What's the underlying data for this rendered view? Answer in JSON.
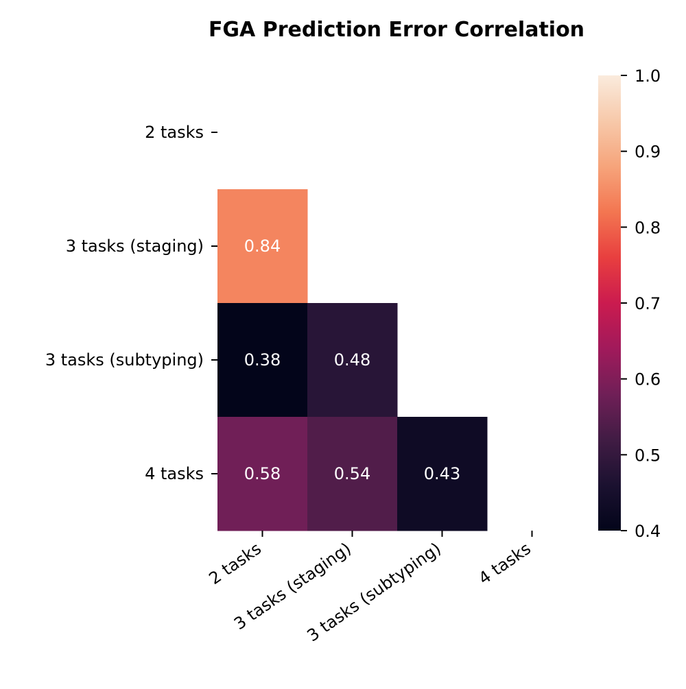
{
  "chart_data": {
    "type": "heatmap",
    "title": "FGA Prediction Error Correlation",
    "row_labels": [
      "2 tasks",
      "3 tasks (staging)",
      "3 tasks (subtyping)",
      "4 tasks"
    ],
    "col_labels": [
      "2 tasks",
      "3 tasks (staging)",
      "3 tasks (subtyping)",
      "4 tasks"
    ],
    "mask": "upper-triangle-including-diagonal",
    "cells": [
      {
        "row": 1,
        "col": 0,
        "value": 0.84,
        "label": "0.84"
      },
      {
        "row": 2,
        "col": 0,
        "value": 0.38,
        "label": "0.38"
      },
      {
        "row": 2,
        "col": 1,
        "value": 0.48,
        "label": "0.48"
      },
      {
        "row": 3,
        "col": 0,
        "value": 0.58,
        "label": "0.58"
      },
      {
        "row": 3,
        "col": 1,
        "value": 0.54,
        "label": "0.54"
      },
      {
        "row": 3,
        "col": 2,
        "value": 0.43,
        "label": "0.43"
      }
    ],
    "colorbar": {
      "vmin": 0.4,
      "vmax": 1.0,
      "colormap": "rocket",
      "ticks": [
        0.4,
        0.5,
        0.6,
        0.7,
        0.8,
        0.9,
        1.0
      ],
      "tick_labels": [
        "0.4",
        "0.5",
        "0.6",
        "0.7",
        "0.8",
        "0.9",
        "1.0"
      ]
    },
    "xlabel": "",
    "ylabel": ""
  }
}
